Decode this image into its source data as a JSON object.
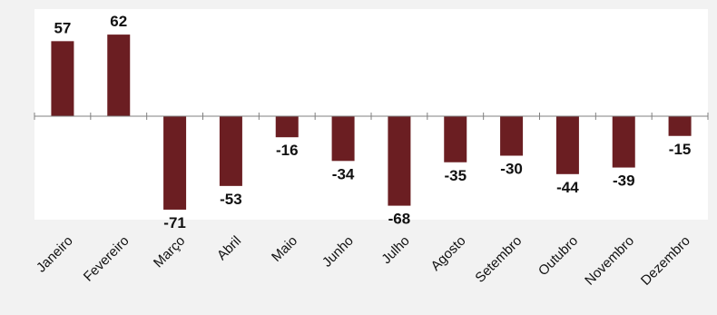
{
  "chart_data": {
    "type": "bar",
    "categories": [
      "Janeiro",
      "Fevereiro",
      "Março",
      "Abril",
      "Maio",
      "Junho",
      "Julho",
      "Agosto",
      "Setembro",
      "Outubro",
      "Novembro",
      "Dezembro"
    ],
    "values": [
      57,
      62,
      -71,
      -53,
      -16,
      -34,
      -68,
      -35,
      -30,
      -44,
      -39,
      -15
    ],
    "title": "",
    "xlabel": "",
    "ylabel": "",
    "ylim": [
      -80,
      80
    ],
    "grid": false,
    "legend": "none",
    "bar_color": "#6b1e22",
    "plot_background": "#ffffff",
    "page_background": "#f2f2f2"
  }
}
